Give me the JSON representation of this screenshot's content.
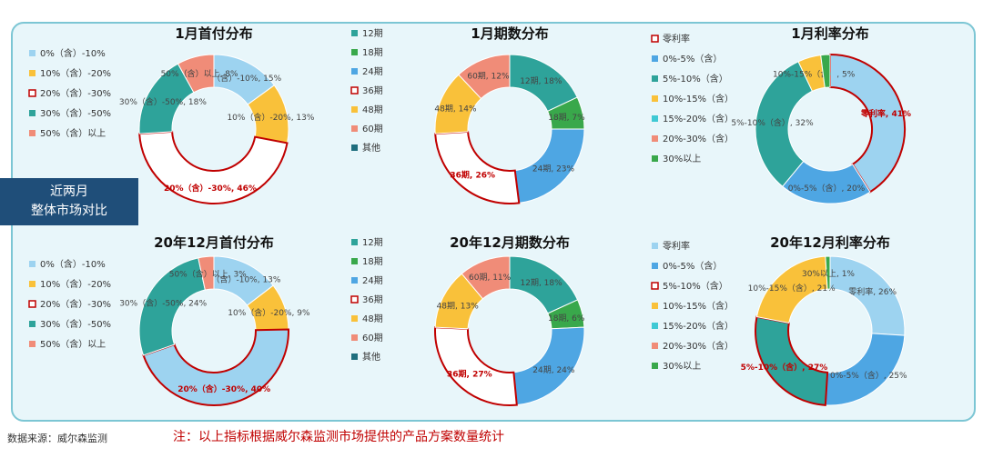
{
  "side_tab": {
    "line1": "近两月",
    "line2": "整体市场对比"
  },
  "footer": {
    "source": "数据来源：威尔森监测",
    "note": "注：以上指标根据威尔森监测市场提供的产品方案数量统计"
  },
  "chart_data": [
    {
      "type": "pie",
      "title": "1月首付分布",
      "categories": [
        "0%（含）-10%",
        "10%（含）-20%",
        "20%（含）-30%",
        "30%（含）-50%",
        "50%（含）以上"
      ],
      "values": [
        15,
        13,
        46,
        18,
        8
      ],
      "labels": [
        "0%（含）-10%, 15%",
        "10%（含）-20%, 13%",
        "20%（含）-30%, 46%",
        "30%（含）-50%, 18%",
        "50%（含）以上, 8%"
      ],
      "legend": [
        "0%（含）-10%",
        "10%（含）-20%",
        "20%（含）-30%",
        "30%（含）-50%",
        "50%（含）以上"
      ],
      "colors": [
        "#9dd3f0",
        "#f9c13a",
        "#ffffff",
        "#2ea39a",
        "#f08c78"
      ],
      "highlight": 2,
      "legend_position": "left"
    },
    {
      "type": "pie",
      "title": "1月期数分布",
      "categories": [
        "12期",
        "18期",
        "24期",
        "36期",
        "48期",
        "60期",
        "其他"
      ],
      "values": [
        18,
        7,
        23,
        26,
        14,
        12,
        0
      ],
      "labels": [
        "12期, 18%",
        "18期, 7%",
        "24期, 23%",
        "36期, 26%",
        "48期, 14%",
        "60期, 12%",
        ""
      ],
      "legend": [
        "12期",
        "18期",
        "24期",
        "36期",
        "48期",
        "60期",
        "其他"
      ],
      "colors": [
        "#2ea39a",
        "#39a84b",
        "#4ea6e3",
        "#ffffff",
        "#f9c13a",
        "#f08c78",
        "#1f6e7e"
      ],
      "highlight": 3,
      "legend_position": "left"
    },
    {
      "type": "pie",
      "title": "1月利率分布",
      "categories": [
        "零利率",
        "0%-5%（含）",
        "5%-10%（含）",
        "10%-15%（含）",
        "15%-20%（含）",
        "20%-30%（含）",
        "30%以上"
      ],
      "values": [
        41,
        20,
        32,
        5,
        0,
        0,
        2
      ],
      "labels": [
        "零利率, 41%",
        "0%-5%（含）, 20%",
        "5%-10%（含）, 32%",
        "10%-15%（含）, 5%",
        "",
        "",
        ""
      ],
      "legend": [
        "零利率",
        "0%-5%（含）",
        "5%-10%（含）",
        "10%-15%（含）",
        "15%-20%（含）",
        "20%-30%（含）",
        "30%以上"
      ],
      "colors": [
        "#9dd3f0",
        "#4ea6e3",
        "#2ea39a",
        "#f9c13a",
        "#3fc9d4",
        "#f08c78",
        "#39a84b"
      ],
      "highlight": 0,
      "legend_position": "left"
    },
    {
      "type": "pie",
      "title": "20年12月首付分布",
      "categories": [
        "0%（含）-10%",
        "10%（含）-20%",
        "20%（含）-30%",
        "30%（含）-50%",
        "50%（含）以上"
      ],
      "values": [
        13,
        9,
        40,
        24,
        3
      ],
      "labels": [
        "0%（含）-10%, 13%",
        "10%（含）-20%, 9%",
        "20%（含）-30%, 40%",
        "30%（含）-50%, 24%",
        "50%（含）以上, 3%"
      ],
      "legend": [
        "0%（含）-10%",
        "10%（含）-20%",
        "20%（含）-30%",
        "30%（含）-50%",
        "50%（含）以上"
      ],
      "colors": [
        "#9dd3f0",
        "#f9c13a",
        "#9dd3f0",
        "#2ea39a",
        "#f08c78"
      ],
      "highlight": 2,
      "legend_position": "left"
    },
    {
      "type": "pie",
      "title": "20年12月期数分布",
      "categories": [
        "12期",
        "18期",
        "24期",
        "36期",
        "48期",
        "60期",
        "其他"
      ],
      "values": [
        18,
        6,
        24,
        27,
        13,
        11,
        0
      ],
      "labels": [
        "12期, 18%",
        "18期, 6%",
        "24期, 24%",
        "36期, 27%",
        "48期, 13%",
        "60期, 11%",
        ""
      ],
      "legend": [
        "12期",
        "18期",
        "24期",
        "36期",
        "48期",
        "60期",
        "其他"
      ],
      "colors": [
        "#2ea39a",
        "#39a84b",
        "#4ea6e3",
        "#ffffff",
        "#f9c13a",
        "#f08c78",
        "#1f6e7e"
      ],
      "highlight": 3,
      "legend_position": "left"
    },
    {
      "type": "pie",
      "title": "20年12月利率分布",
      "categories": [
        "零利率",
        "0%-5%（含）",
        "5%-10%（含）",
        "10%-15%（含）",
        "15%-20%（含）",
        "20%-30%（含）",
        "30%以上"
      ],
      "values": [
        26,
        25,
        27,
        21,
        0,
        0,
        1
      ],
      "labels": [
        "零利率, 26%",
        "0%-5%（含）, 25%",
        "5%-10%（含）, 27%",
        "10%-15%（含）, 21%",
        "",
        "",
        "30%以上, 1%"
      ],
      "legend": [
        "零利率",
        "0%-5%（含）",
        "5%-10%（含）",
        "10%-15%（含）",
        "15%-20%（含）",
        "20%-30%（含）",
        "30%以上"
      ],
      "colors": [
        "#9dd3f0",
        "#4ea6e3",
        "#2ea39a",
        "#f9c13a",
        "#3fc9d4",
        "#f08c78",
        "#39a84b"
      ],
      "highlight": 2,
      "legend_position": "left"
    }
  ]
}
